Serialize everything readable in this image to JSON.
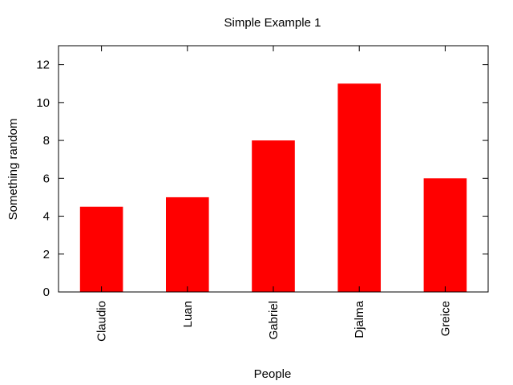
{
  "chart_data": {
    "type": "bar",
    "title": "Simple Example 1",
    "xlabel": "People",
    "ylabel": "Something random",
    "categories": [
      "Claudio",
      "Luan",
      "Gabriel",
      "Djalma",
      "Greice"
    ],
    "values": [
      4.5,
      5,
      8,
      11,
      6
    ],
    "ylim": [
      0,
      13
    ],
    "yticks": [
      0,
      2,
      4,
      6,
      8,
      10,
      12
    ],
    "bar_color": "#ff0000",
    "grid": false,
    "legend": "none"
  }
}
